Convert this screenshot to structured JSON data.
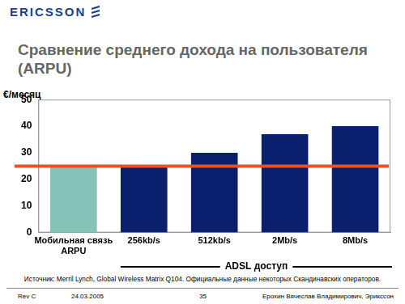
{
  "header": {
    "logo": "ERICSSON"
  },
  "chart_data": {
    "type": "bar",
    "title": "Сравнение среднего дохода на пользователя (ARPU)",
    "ylabel": "€/месяц",
    "categories": [
      [
        "Мобильная связь",
        "ARPU"
      ],
      "256kb/s",
      "512kb/s",
      "2Mb/s",
      "8Mb/s"
    ],
    "values": [
      25,
      25,
      30,
      37,
      40
    ],
    "colors": [
      "#86c2b8",
      "#0a1f6e",
      "#0a1f6e",
      "#0a1f6e",
      "#0a1f6e"
    ],
    "ylim": [
      0,
      50
    ],
    "yticks": [
      0,
      10,
      20,
      30,
      40,
      50
    ],
    "grid": false,
    "reference_line": {
      "value": 25,
      "color": "#f0501e"
    },
    "group": {
      "label": "ADSL доступ",
      "categories": [
        "256kb/s",
        "512kb/s",
        "2Mb/s",
        "8Mb/s"
      ]
    }
  },
  "source": "Источник: Merril Lynch, Global Wireless Matrix Q104. Официальные данные некоторых Скандинавских операторов.",
  "footer": {
    "revision": "Rev C",
    "date": "24.03.2005",
    "page": "35",
    "author": "Ерохин Вячеслав Владимирович, Эрикссон"
  }
}
